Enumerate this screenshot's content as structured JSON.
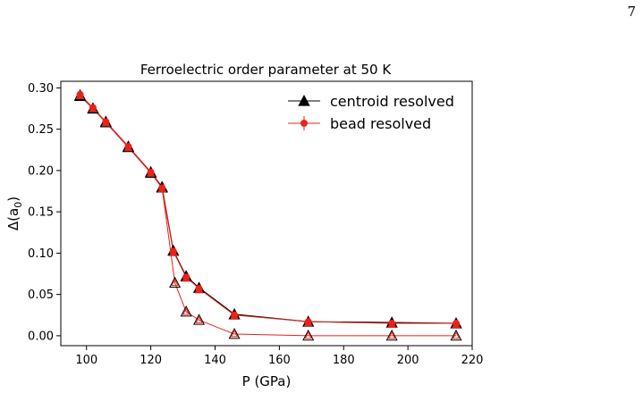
{
  "page_number": "7",
  "chart_data": {
    "type": "line",
    "title": "Ferroelectric order parameter at 50 K",
    "xlabel": "P (GPa)",
    "ylabel": "Δ(a",
    "ylabel_sub": "0",
    "ylabel_close": ")",
    "xlim": [
      92,
      220
    ],
    "ylim": [
      -0.012,
      0.308
    ],
    "xticks": [
      100,
      120,
      140,
      160,
      180,
      200,
      220
    ],
    "yticks": [
      0.0,
      0.05,
      0.1,
      0.15,
      0.2,
      0.25,
      0.3
    ],
    "xtick_labels": [
      "100",
      "120",
      "140",
      "160",
      "180",
      "200",
      "220"
    ],
    "ytick_labels": [
      "0.00",
      "0.05",
      "0.10",
      "0.15",
      "0.20",
      "0.25",
      "0.30"
    ],
    "grid": false,
    "legend_position": "top-right",
    "series": [
      {
        "name": "centroid resolved",
        "marker": "triangle",
        "color": "#000000",
        "x": [
          98,
          102,
          106,
          113,
          120,
          123.5,
          127,
          131,
          135,
          146,
          169,
          195,
          215
        ],
        "y": [
          0.291,
          0.275,
          0.259,
          0.229,
          0.198,
          0.18,
          0.103,
          0.072,
          0.058,
          0.026,
          0.017,
          0.016,
          0.015
        ]
      },
      {
        "name": "bead resolved",
        "marker": "circle",
        "color": "#e8231a",
        "x": [
          98,
          102,
          106,
          113,
          120,
          123.5,
          127,
          131,
          135,
          146,
          169,
          195,
          215
        ],
        "y": [
          0.292,
          0.276,
          0.259,
          0.229,
          0.198,
          0.179,
          0.102,
          0.071,
          0.057,
          0.025,
          0.017,
          0.015,
          0.015
        ]
      },
      {
        "marker": "triangle-open",
        "color": "#e8231a",
        "x": [
          98,
          102,
          106,
          113,
          120,
          123.5,
          127.5,
          131,
          135,
          146,
          169,
          195,
          215
        ],
        "y": [
          0.29,
          0.275,
          0.258,
          0.228,
          0.197,
          0.179,
          0.064,
          0.029,
          0.019,
          0.002,
          0.0,
          0.0,
          0.0
        ]
      }
    ]
  }
}
